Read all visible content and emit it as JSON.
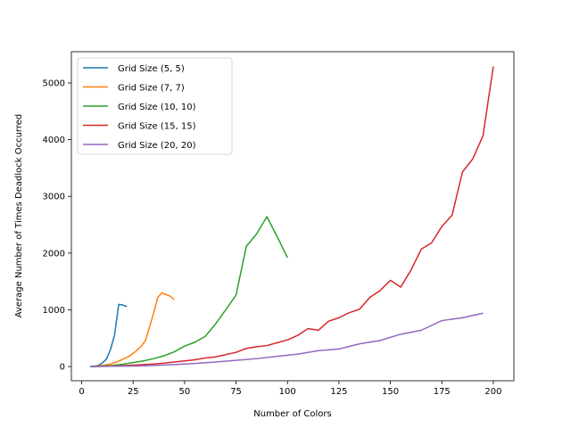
{
  "chart_data": {
    "type": "line",
    "title": "",
    "xlabel": "Number of Colors",
    "ylabel": "Average Number of Times Deadlock Occurred",
    "xlim": [
      -5,
      210
    ],
    "ylim": [
      -250,
      5550
    ],
    "xticks": [
      0,
      25,
      50,
      75,
      100,
      125,
      150,
      175,
      200
    ],
    "yticks": [
      0,
      1000,
      2000,
      3000,
      4000,
      5000
    ],
    "grid": false,
    "legend_position": "top-left",
    "series": [
      {
        "name": "Grid Size (5, 5)",
        "color": "#1f77b4",
        "x": [
          4,
          6,
          8,
          10,
          12,
          14,
          16,
          18,
          20,
          22
        ],
        "y": [
          0,
          5,
          20,
          60,
          130,
          300,
          560,
          1095,
          1085,
          1055
        ]
      },
      {
        "name": "Grid Size (7, 7)",
        "color": "#ff7f0e",
        "x": [
          5,
          8,
          11,
          14,
          17,
          20,
          23,
          26,
          29,
          31,
          33,
          35,
          37,
          39,
          41,
          43,
          45
        ],
        "y": [
          0,
          10,
          25,
          45,
          80,
          130,
          180,
          260,
          360,
          460,
          700,
          950,
          1220,
          1300,
          1270,
          1240,
          1180
        ]
      },
      {
        "name": "Grid Size (10, 10)",
        "color": "#2ca02c",
        "x": [
          5,
          10,
          15,
          20,
          25,
          30,
          35,
          40,
          45,
          50,
          55,
          60,
          65,
          70,
          75,
          80,
          85,
          90,
          95,
          100
        ],
        "y": [
          0,
          10,
          20,
          40,
          70,
          100,
          140,
          190,
          260,
          360,
          430,
          530,
          750,
          1000,
          1260,
          2120,
          2340,
          2640,
          2290,
          1920
        ]
      },
      {
        "name": "Grid Size (15, 15)",
        "color": "#d62728",
        "x": [
          5,
          10,
          15,
          20,
          25,
          30,
          35,
          40,
          45,
          50,
          55,
          60,
          65,
          70,
          75,
          80,
          85,
          90,
          95,
          100,
          105,
          110,
          115,
          120,
          125,
          130,
          135,
          140,
          145,
          150,
          155,
          160,
          165,
          170,
          175,
          180,
          185,
          190,
          195,
          200
        ],
        "y": [
          0,
          5,
          10,
          15,
          25,
          35,
          45,
          60,
          80,
          100,
          120,
          150,
          170,
          210,
          250,
          320,
          350,
          370,
          420,
          470,
          550,
          670,
          640,
          800,
          860,
          950,
          1010,
          1220,
          1340,
          1520,
          1400,
          1700,
          2070,
          2180,
          2470,
          2670,
          3430,
          3660,
          4070,
          5290
        ]
      },
      {
        "name": "Grid Size (20, 20)",
        "color": "#9467bd",
        "x": [
          5,
          15,
          25,
          35,
          45,
          55,
          65,
          75,
          85,
          95,
          105,
          115,
          125,
          135,
          145,
          155,
          165,
          175,
          185,
          195
        ],
        "y": [
          0,
          5,
          10,
          20,
          35,
          55,
          80,
          110,
          140,
          180,
          220,
          280,
          310,
          400,
          460,
          570,
          640,
          810,
          860,
          940
        ]
      }
    ]
  }
}
